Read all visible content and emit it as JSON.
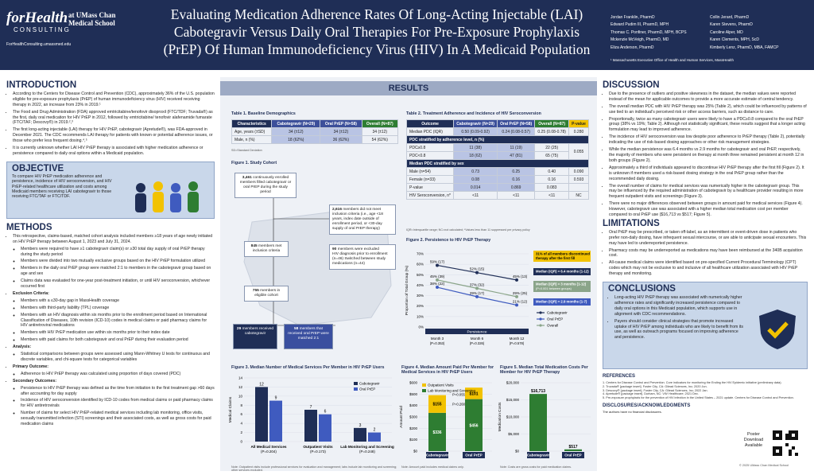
{
  "header": {
    "logo_main": "forHealth",
    "logo_sub": "CONSULTING",
    "logo_org": "at UMass Chan Medical School",
    "logo_url": "ForHealthConsulting.umassmed.edu",
    "title": "Evaluating Medication Adherence Rates Of Long-Acting Injectable (LAI) Cabotegravir Versus Daily Oral Therapies For Pre-Exposure Prophylaxis (PrEP) Of Human Immunodeficiency Virus (HIV) In A Medicaid Population",
    "authors": [
      "Jordan Franklin, PharmD",
      "Collin Jerard, PharmD",
      "Edward Pudim III, PharmD, MPH",
      "Karen Stevens, PharmD",
      "Thomas C. Ponfiner, PharmD, MPH, BCPS",
      "Caroline Alper, MD",
      "Mckenzie McVeigh, PharmD, MD",
      "Karen Clements, MPH, ScD",
      "Eliza Anderson, PharmD",
      "Kimberly Lenz, PharmD, MBA, FAMCP"
    ],
    "affiliation": "¹ Massachusetts Executive Office of Health and Human Services, MassHealth"
  },
  "intro": {
    "heading": "INTRODUCTION",
    "bullets": [
      "According to the Centers for Disease Control and Prevention (CDC), approximately 36% of the U.S. population eligible for pre-exposure prophylaxis (PrEP) of human immunodeficiency virus (HIV) received receiving therapy in 2022, an increase from 23% in 2019.¹",
      "The Food and Drug Administration (FDA) approved emtricitabine/tenofovir disoproxil (FTC/TDF; Truvada®) as the first, daily oral medication for HIV PrEP in 2012, followed by emtricitabine/ tenofovir alafenamide fumarate (FTC/TAF; Descovy®) in 2019.²,³",
      "The first long-acting injectable (LAI) therapy for HIV PrEP, cabotegravir (Apretude®), was FDA-approved in December 2021. The CDC recommends LAI therapy for patients with known or potential adherence issues, or those who prefer less frequent dosing.⁴,⁵",
      "It is currently unknown whether LAI HIV PrEP therapy is associated with higher medication adherence or persistence compared to daily oral options within a Medicaid population."
    ]
  },
  "objective": {
    "heading": "OBJECTIVE",
    "text": "To compare HIV PrEP medication adherence and persistence, incidence of HIV seroconversion, and HIV PrEP-related healthcare utilization and costs among Medicaid members receiving LAI cabotegravir to those receiving FTC/TAF or FTC/TDF."
  },
  "methods": {
    "heading": "METHODS",
    "bullets": [
      {
        "text": "This retrospective, claims-based, matched cohort analysis included members ≥18 years of age newly initiated on HIV PrEP therapy between August 1, 2023 and July 31, 2024.",
        "sub": [
          "Members were required to have ≥1 cabotegravir claim(s) or ≥30 total day supply of oral PrEP therapy during the study period",
          "Members were divided into two mutually exclusive groups based on the HIV PrEP formulation utilized",
          "Members in the daily oral PrEP group were matched 2:1 to members in the cabotegravir group based on age and sex",
          "Claims data was evaluated for one-year post-treatment initiation, or until HIV seroconversion, whichever occurred first"
        ]
      },
      {
        "text": "Exclusion Criteria:",
        "sub": [
          "Members with a ≤30-day gap in MassHealth coverage",
          "Members with third-party liability (TPL) coverage",
          "Members with an HIV diagnosis within six months prior to the enrollment period based on International Classification of Diseases, 10th revision (ICD-10) codes in medical claims or paid pharmacy claims for HIV antiretroviral medications",
          "Members with HIV PrEP medication use within six months prior to their index date",
          "Members with paid claims for both cabotegravir and oral PrEP during their evaluation period"
        ]
      },
      {
        "text": "Analysis:",
        "sub": [
          "Statistical comparisons between groups were assessed using Mann-Whitney U tests for continuous and discrete variables, and chi-square tests for categorical variables"
        ]
      },
      {
        "text": "Primary Outcome:",
        "sub": [
          "Adherence to HIV PrEP therapy was calculated using proportion of days covered (PDC)"
        ]
      },
      {
        "text": "Secondary Outcomes:",
        "sub": [
          "Persistence to HIV PrEP therapy was defined as the time from initiation to the first treatment gap >60 days after accounting for day supply",
          "Incidence of HIV seroconversion identified by ICD-10 codes from medical claims or paid pharmacy claims for HIV antiretrovirals",
          "Number of claims for select HIV PrEP-related medical services including lab monitoring, office visits, sexually transmitted infection (STI) screenings and their associated costs, as well as gross costs for paid medication claims"
        ]
      }
    ]
  },
  "results": {
    "heading": "RESULTS",
    "t1": {
      "caption": "Table 1. Baseline Demographics",
      "cols": [
        "Characteristics",
        "Cabotegravir (N=29)",
        "Oral PrEP (N=58)",
        "Overall (N=87)"
      ],
      "rows": [
        [
          "Age, years (±SD)",
          "34 (±12)",
          "34 (±12)",
          "34 (±12)"
        ],
        [
          "Male, n (%)",
          "18 (62%)",
          "36 (62%)",
          "54 (62%)"
        ]
      ],
      "note": "SD=Standard Deviation"
    },
    "t2": {
      "caption": "Table 2. Treatment Adherence and Incidence of HIV Seroconversion",
      "cols": [
        "Outcome",
        "Cabotegravir (N=29)",
        "Oral PrEP (N=58)",
        "Overall (N=87)",
        "P-value"
      ],
      "rows": [
        [
          "Median PDC (IQR)",
          "0.50 (0.09-0.92)",
          "0.24 (0.08-0.57)",
          "0.25 (0.08-0.78)",
          "0.280"
        ]
      ],
      "sub1": "PDC stratified by adherence level, n (%)",
      "rows1": [
        [
          "PDC≥0.8",
          "11 (38)",
          "11 (19)",
          "22 (25)"
        ],
        [
          "PDC<0.8",
          "18 (62)",
          "47 (81)",
          "65 (75)"
        ]
      ],
      "p1": "0.055",
      "sub2": "Median PDC stratified by sex",
      "rows2": [
        [
          "Male (n=54)",
          "0.73",
          "0.25",
          "0.40",
          "0.090"
        ],
        [
          "Female (n=33)",
          "0.08",
          "0.16",
          "0.16",
          "0.593"
        ],
        [
          "P-value",
          "0.014",
          "0.869",
          "0.083",
          ""
        ]
      ],
      "rows3": [
        [
          "HIV Seroconversion, n*",
          "<11",
          "<11",
          "<11",
          "NC"
        ]
      ],
      "note": "IQR=Interquartile range; NC=not calculated; *Values less than 11 suppressed per privacy policy"
    },
    "f1": {
      "caption": "Figure 1. Study Cohort",
      "b1_num": "3,461",
      "b1_txt": "continuously enrolled members filled cabotegravir or oral PrEP during the study period",
      "b2_num": "2,616",
      "b2_txt": "members did not meet inclusion criteria (i.e., age <18 years, index date outside of enrollment period, or <30-day supply of oral PrEP therapy)",
      "b3_num": "845",
      "b3_txt": "members met inclusion criteria",
      "b4_num": "90",
      "b4_txt": "members were excluded",
      "b4_sub": "HIV diagnosis prior to enrollment (n=46)  Switched between study medications (n=44)",
      "b5_num": "755",
      "b5_txt": "members in eligible cohort",
      "b6_num": "29",
      "b6_txt": "members received cabotegravir",
      "b7_num": "58",
      "b7_txt": "members that received oral PrEP were matched 2:1"
    },
    "f2": {
      "caption": "Figure 2. Persistence to HIV PrEP Therapy",
      "note": "31% of all members discontinued therapy after the first fill",
      "med": [
        "Median (IQR) = 6.4 months (1-12)",
        "Median (IQR) = 3 months (1-12)",
        "Median (IQR) = 2.9 months (1-7)"
      ],
      "med_note": "(P=0.001 between groups)",
      "xtitle": "Persistence"
    },
    "f3": {
      "caption": "Figure 3. Median Number of Medical Services Per Member in HIV PrEP Users",
      "note": "Note: Outpatient visits include professional services for evaluation and management; labs include lab monitoring and screening; other services excluded."
    },
    "f4": {
      "caption": "Figure 4. Median Amount Paid Per Member for Medical Services in HIV PrEP Users",
      "note": "Note: Amount paid includes medical claims only."
    },
    "f5": {
      "caption": "Figure 5. Median Total Medication Costs Per Member for HIV PrEP Therapy",
      "note": "Note: Costs are gross costs for paid medication claims."
    }
  },
  "discussion": {
    "heading": "DISCUSSION",
    "bullets": [
      "Due to the presence of outliers and positive skewness in the dataset, the median values were reported instead of the mean for applicable outcomes to provide a more accurate estimate of central tendency.",
      "The overall median PDC with HIV PrEP therapy was 25% (Table 2), which could be influenced by patterns of use tied to an individual's perceived risk or other access barriers, such as distance to care.",
      "Proportionally, twice as many cabotegravir users were likely to have a PDC≥0.8 compared to the oral PrEP group (38% vs 19%; Table 2). Although not statistically significant, these results suggest that a longer acting formulation may lead to improved adherence.",
      "The incidence of HIV seroconversion was low despite poor adherence to PrEP therapy (Table 2), potentially indicating the use of risk-based dosing approaches or other risk management strategies.",
      "While the median persistence was 6.4 months vs 2.9 months for cabotegravir and oral PrEP, respectively, the majority of members who were persistent on therapy at month three remained persistent at month 12 in both groups (Figure 2).",
      "Approximately a third of individuals appeared to discontinue HIV PrEP therapy after the first fill (Figure 2). It is unknown if members used a risk-based dosing strategy in the oral PrEP group rather than the recommended daily dosing.",
      "The overall number of claims for medical services was numerically higher in the cabotegravir group. This may be influenced by the required administration of cabotegravir by a healthcare provider resulting in more frequent outpatient visits and screenings (Figure 3).",
      "There were no major differences observed between groups in amount paid for medical services (Figure 4). However, cabotegravir use was associated with a higher median total medication cost per member compared to oral PrEP use ($16,713 vs $517; Figure 5)."
    ]
  },
  "limitations": {
    "heading": "LIMITATIONS",
    "bullets": [
      "Oral PrEP may be prescribed, or taken off-label, as an intermittent or event-driven dose in patients who prefer non-daily dosing, have infrequent sexual intercourse, or are able to anticipate sexual encounters. This may have led to underreported persistence.",
      "Pharmacy costs may be underreported as medications may have been reimbursed at the 340B acquisition cost.",
      "All-cause medical claims were identified based on pre-specified Current Procedural Terminology (CPT) codes which may not be exclusive to and inclusive of all healthcare utilization associated with HIV PrEP therapy and monitoring."
    ]
  },
  "conclusions": {
    "heading": "CONCLUSIONS",
    "bullets": [
      "Long-acting HIV PrEP therapy was associated with numerically higher adherence rates and significantly increased persistence compared to daily oral options in this Medicaid population, which supports use in alignment with CDC recommendations.",
      "Payers should consider clinical strategies that promote increased uptake of HIV PrEP among individuals who are likely to benefit from its use, as well as outreach programs focused on improving adherence and persistence."
    ]
  },
  "references": {
    "heading": "REFERENCES",
    "items": [
      "1. Centers for Disease Control and Prevention. Core indicators for monitoring the Ending the HIV Epidemic initiative (preliminary data).",
      "2. Truvada® [package insert]. Foster City, CA: Gilead Sciences, Inc; 2020 Jun.",
      "3. Descovy® [package insert]. Foster City, CA: Gilead Sciences, Inc; 2022 Jan.",
      "4. Apretude® [package insert]. Durham, NC: ViiV Healthcare; 2021 Dec.",
      "5. Pre-exposure prophylaxis for the prevention of HIV infection in the United States – 2021 update. Centers for Disease Control and Prevention."
    ]
  },
  "disclosures": {
    "heading": "DISCLOSURES/ACKNOWLEDGMENTS",
    "text": "The authors have no financial disclosures."
  },
  "poster": {
    "label": "Poster Download Available",
    "copyright": "© 2025 UMass Chan Medical School"
  },
  "chart_data": [
    {
      "type": "line",
      "title": "Persistence to HIV PrEP Therapy",
      "ylabel": "Proportion of Total Group (%)",
      "ylim": [
        0,
        70
      ],
      "categories": [
        "Month 3 (P=0.353)",
        "Month 6 (P=0.326)",
        "Month 12 (P=0.578)"
      ],
      "series": [
        {
          "name": "Cabotegravir",
          "values": [
            59,
            52,
            45
          ],
          "labels": [
            "59% (17)",
            "52% (15)",
            "45% (13)"
          ],
          "color": "#1f2e56"
        },
        {
          "name": "Oral PrEP",
          "values": [
            38,
            29,
            21
          ],
          "labels": [
            "38% (22)",
            "29% (17)",
            "21% (12)"
          ],
          "color": "#3f5bbf"
        },
        {
          "name": "Overall",
          "values": [
            45,
            37,
            29
          ],
          "labels": [
            "45% (39)",
            "37% (32)",
            "29% (25)"
          ],
          "color": "#8ba58a"
        }
      ]
    },
    {
      "type": "bar",
      "title": "Median Number of Medical Services Per Member in HIV PrEP Users",
      "ylabel": "Medical Claims",
      "ylim": [
        0,
        14
      ],
      "categories": [
        "All Medical Services (P=0.204)",
        "Outpatient Visits (P=0.173)",
        "Lab Monitoring and Screening (P=0.248)"
      ],
      "series": [
        {
          "name": "Cabotegravir",
          "values": [
            12,
            7,
            3
          ],
          "color": "#1f2e56"
        },
        {
          "name": "Oral PrEP",
          "values": [
            9,
            6,
            2
          ],
          "color": "#3f5bbf"
        }
      ]
    },
    {
      "type": "bar",
      "stacked": true,
      "title": "Median Amount Paid Per Member for Medical Services in HIV PrEP Users",
      "ylabel": "Amount Paid",
      "ylim": [
        0,
        600
      ],
      "categories": [
        "Cabotegravir",
        "Oral PrEP"
      ],
      "series": [
        {
          "name": "Outpatient Visits",
          "values": [
            155,
            101
          ],
          "color": "#f2c200"
        },
        {
          "name": "Lab Monitoring and Screening",
          "values": [
            336,
            456
          ],
          "color": "#2e7d32"
        }
      ],
      "totals": [
        "P=0.268",
        "P=0.055"
      ]
    },
    {
      "type": "bar",
      "title": "Median Total Medication Costs Per Member for HIV PrEP Therapy",
      "ylabel": "Medication Costs",
      "ylim": [
        0,
        20000
      ],
      "yticks": [
        "$0",
        "$5,000",
        "$10,000",
        "$15,000",
        "$20,000"
      ],
      "categories": [
        "Cabotegravir",
        "Oral PrEP"
      ],
      "values": [
        16713,
        517
      ],
      "labels": [
        "$16,713",
        "$517"
      ],
      "colors": [
        "#2e7d32",
        "#2e7d32"
      ]
    }
  ]
}
